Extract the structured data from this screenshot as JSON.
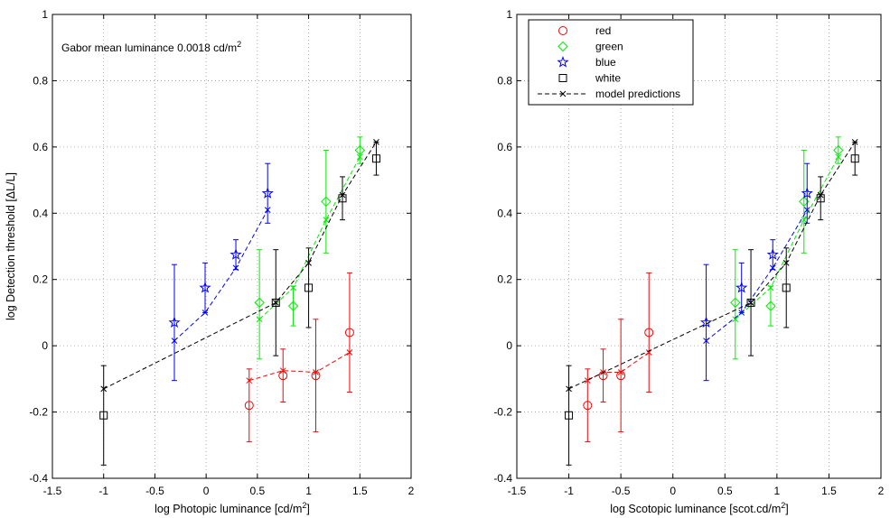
{
  "chart_data": [
    {
      "type": "scatter",
      "panel": "left",
      "xlabel": "log Photopic luminance [cd/m",
      "xlabel_sup": "2",
      "xlabel_end": "]",
      "ylabel": "log Detection threshold [ΔL/L]",
      "annotation": "Gabor mean luminance 0.0018 cd/m",
      "annotation_sup": "2",
      "xlim": [
        -1.5,
        2
      ],
      "ylim": [
        -0.4,
        1
      ],
      "xticks": [
        "-1.5",
        "-1",
        "-0.5",
        "0",
        "0.5",
        "1",
        "1.5",
        "2"
      ],
      "yticks": [
        "-0.4",
        "-0.2",
        "0",
        "0.2",
        "0.4",
        "0.6",
        "0.8",
        "1"
      ],
      "grid": true,
      "series": [
        {
          "name": "red",
          "color": "#ff0000",
          "marker": "circle",
          "x": [
            0.42,
            0.75,
            1.07,
            1.4
          ],
          "y": [
            -0.18,
            -0.09,
            -0.09,
            0.04
          ],
          "err_low": [
            -0.29,
            -0.17,
            -0.26,
            -0.14
          ],
          "err_high": [
            -0.07,
            -0.01,
            0.08,
            0.22
          ],
          "model_x": [
            0.42,
            0.75,
            1.07,
            1.4
          ],
          "model_y": [
            -0.105,
            -0.075,
            -0.08,
            -0.02
          ]
        },
        {
          "name": "green",
          "color": "#00ee00",
          "marker": "diamond",
          "x": [
            0.52,
            0.85,
            1.17,
            1.5
          ],
          "y": [
            0.13,
            0.12,
            0.435,
            0.59
          ],
          "err_low": [
            -0.04,
            0.06,
            0.28,
            0.55
          ],
          "err_high": [
            0.29,
            0.18,
            0.59,
            0.63
          ],
          "model_x": [
            0.52,
            0.85,
            1.17,
            1.5
          ],
          "model_y": [
            0.08,
            0.175,
            0.38,
            0.57
          ]
        },
        {
          "name": "blue",
          "color": "#0000ff",
          "marker": "star",
          "x": [
            -0.31,
            -0.01,
            0.29,
            0.6
          ],
          "y": [
            0.07,
            0.175,
            0.275,
            0.46
          ],
          "err_low": [
            -0.105,
            0.1,
            0.23,
            0.37
          ],
          "err_high": [
            0.245,
            0.25,
            0.32,
            0.55
          ],
          "model_x": [
            -0.31,
            -0.01,
            0.29,
            0.6
          ],
          "model_y": [
            0.015,
            0.1,
            0.235,
            0.41
          ]
        },
        {
          "name": "white",
          "color": "#000000",
          "marker": "square",
          "x": [
            -1.0,
            0.68,
            1.0,
            1.33,
            1.66
          ],
          "y": [
            -0.21,
            0.13,
            0.175,
            0.445,
            0.565
          ],
          "err_low": [
            -0.36,
            -0.03,
            0.055,
            0.38,
            0.515
          ],
          "err_high": [
            -0.06,
            0.29,
            0.295,
            0.51,
            0.615
          ],
          "model_x": [
            -1.0,
            0.68,
            1.0,
            1.33,
            1.66
          ],
          "model_y": [
            -0.13,
            0.13,
            0.25,
            0.455,
            0.615
          ]
        }
      ]
    },
    {
      "type": "scatter",
      "panel": "right",
      "xlabel": "log Scotopic luminance [scot.cd/m",
      "xlabel_sup": "2",
      "xlabel_end": "]",
      "xlim": [
        -1.5,
        2
      ],
      "ylim": [
        -0.4,
        1
      ],
      "xticks": [
        "-1.5",
        "-1",
        "-0.5",
        "0",
        "0.5",
        "1",
        "1.5",
        "2"
      ],
      "yticks": [
        "-0.4",
        "-0.2",
        "0",
        "0.2",
        "0.4",
        "0.6",
        "0.8",
        "1"
      ],
      "grid": true,
      "legend_position": "top-left",
      "legend": [
        "red",
        "green",
        "blue",
        "white",
        "model predictions"
      ],
      "series": [
        {
          "name": "red",
          "color": "#ff0000",
          "marker": "circle",
          "x": [
            -0.82,
            -0.67,
            -0.5,
            -0.23
          ],
          "y": [
            -0.18,
            -0.09,
            -0.09,
            0.04
          ],
          "err_low": [
            -0.29,
            -0.17,
            -0.26,
            -0.14
          ],
          "err_high": [
            -0.07,
            -0.01,
            0.08,
            0.22
          ],
          "model_x": [
            -0.82,
            -0.67,
            -0.5,
            -0.23
          ],
          "model_y": [
            -0.105,
            -0.08,
            -0.08,
            -0.02
          ]
        },
        {
          "name": "green",
          "color": "#00ee00",
          "marker": "diamond",
          "x": [
            0.6,
            0.94,
            1.26,
            1.59
          ],
          "y": [
            0.13,
            0.12,
            0.435,
            0.59
          ],
          "err_low": [
            -0.04,
            0.06,
            0.28,
            0.55
          ],
          "err_high": [
            0.29,
            0.18,
            0.59,
            0.63
          ],
          "model_x": [
            0.6,
            0.94,
            1.26,
            1.59
          ],
          "model_y": [
            0.08,
            0.175,
            0.38,
            0.57
          ]
        },
        {
          "name": "blue",
          "color": "#0000ff",
          "marker": "star",
          "x": [
            0.32,
            0.66,
            0.96,
            1.29
          ],
          "y": [
            0.07,
            0.175,
            0.275,
            0.46
          ],
          "err_low": [
            -0.105,
            0.1,
            0.23,
            0.37
          ],
          "err_high": [
            0.245,
            0.25,
            0.32,
            0.55
          ],
          "model_x": [
            0.32,
            0.66,
            0.96,
            1.29
          ],
          "model_y": [
            0.015,
            0.1,
            0.235,
            0.41
          ]
        },
        {
          "name": "white",
          "color": "#000000",
          "marker": "square",
          "x": [
            -1.0,
            0.75,
            1.09,
            1.42,
            1.75
          ],
          "y": [
            -0.21,
            0.13,
            0.175,
            0.445,
            0.565
          ],
          "err_low": [
            -0.36,
            -0.03,
            0.055,
            0.38,
            0.515
          ],
          "err_high": [
            -0.06,
            0.29,
            0.295,
            0.51,
            0.615
          ],
          "model_x": [
            -1.0,
            0.75,
            1.09,
            1.42,
            1.75
          ],
          "model_y": [
            -0.13,
            0.13,
            0.25,
            0.455,
            0.615
          ]
        }
      ]
    }
  ]
}
